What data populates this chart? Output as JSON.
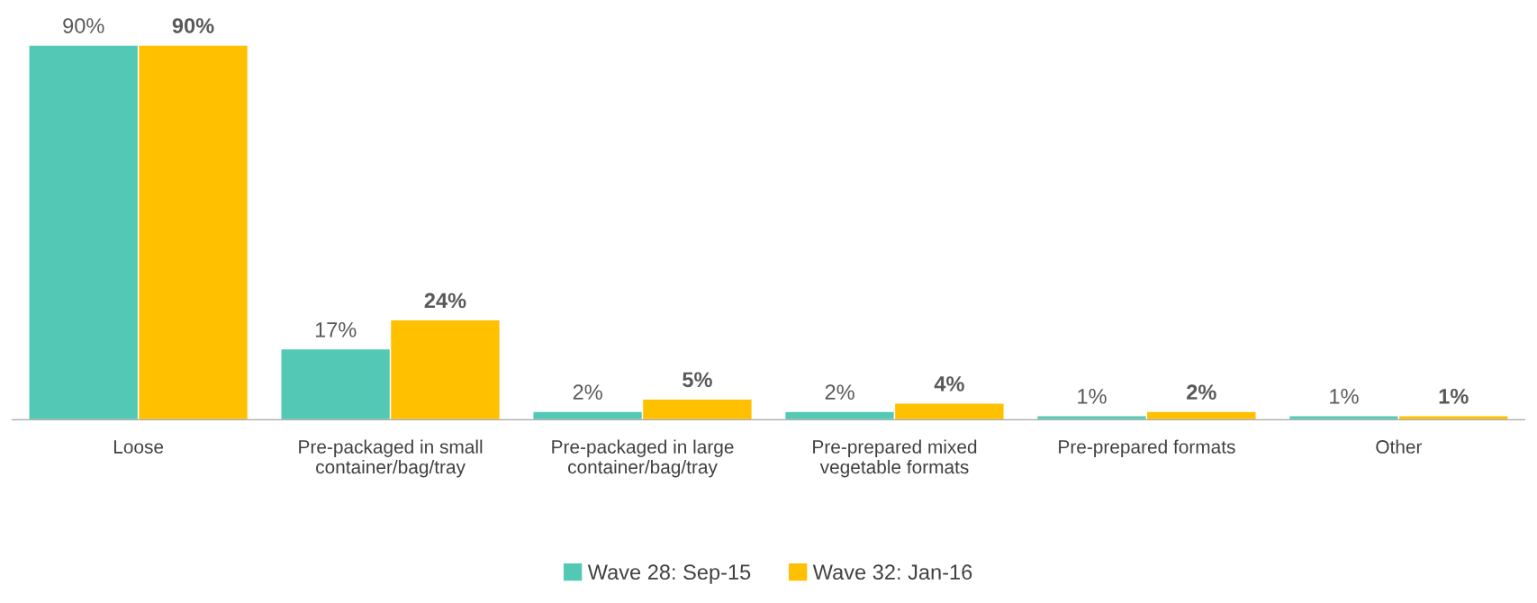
{
  "chart_data": {
    "type": "bar",
    "categories": [
      "Loose",
      "Pre-packaged in small\ncontainer/bag/tray",
      "Pre-packaged in large\ncontainer/bag/tray",
      "Pre-prepared mixed\nvegetable formats",
      "Pre-prepared formats",
      "Other"
    ],
    "series": [
      {
        "name": "Wave 28: Sep-15",
        "color": "#53c9b5",
        "values": [
          90,
          17,
          2,
          2,
          1,
          1
        ],
        "value_labels": [
          "90%",
          "17%",
          "2%",
          "2%",
          "1%",
          "1%"
        ]
      },
      {
        "name": "Wave 32: Jan-16",
        "color": "#ffc000",
        "values": [
          90,
          24,
          5,
          4,
          2,
          1
        ],
        "value_labels": [
          "90%",
          "24%",
          "5%",
          "4%",
          "2%",
          "1%"
        ]
      }
    ],
    "legend": "bottom",
    "grid": false
  }
}
